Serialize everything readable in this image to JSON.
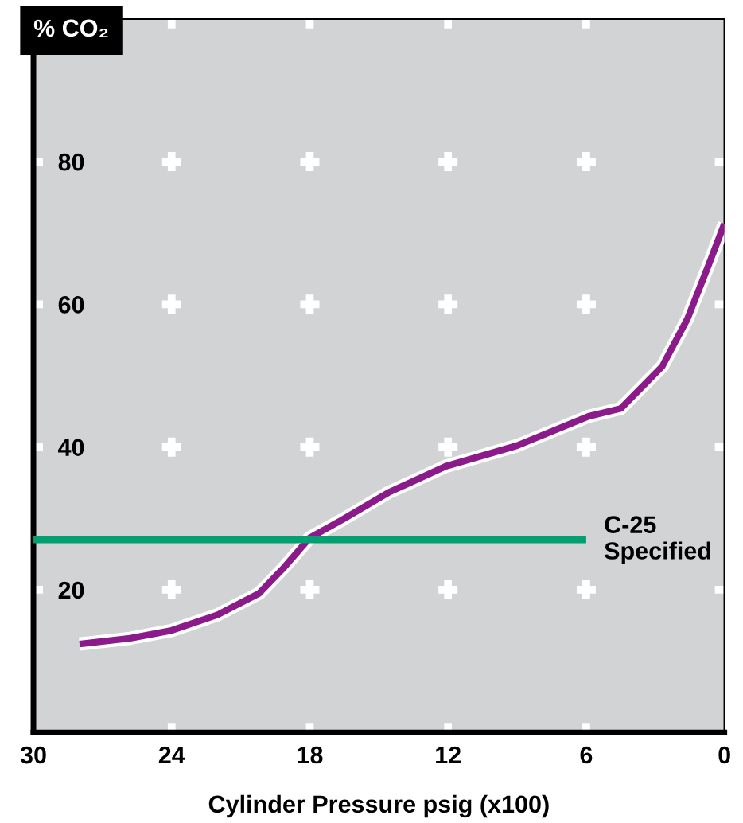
{
  "chart_data": {
    "type": "line",
    "ylabel": "% CO₂",
    "xlabel": "Cylinder Pressure psig (x100)",
    "xlim": [
      30,
      0
    ],
    "xticks": [
      30,
      24,
      18,
      12,
      6,
      0
    ],
    "ylim": [
      0,
      100
    ],
    "yticks": [
      20,
      40,
      60,
      80
    ],
    "grid": true,
    "marker": "none",
    "line_style": "solid",
    "series": [
      {
        "color": "#8b1a8b",
        "x": [
          28.0,
          25.8,
          24.0,
          22.0,
          20.2,
          19.1,
          18.0,
          16.6,
          14.6,
          12.1,
          9.0,
          5.9,
          4.5,
          2.7,
          1.6,
          0.7,
          0
        ],
        "values": [
          12.4,
          13.2,
          14.3,
          16.5,
          19.5,
          23.2,
          27.3,
          29.8,
          33.6,
          37.3,
          40.2,
          44.3,
          45.4,
          51.3,
          58,
          65.4,
          71.3
        ]
      },
      {
        "name": "C-25 Specified",
        "color": "#00a070",
        "x": [
          30,
          6
        ],
        "values": [
          27,
          27
        ]
      }
    ]
  }
}
